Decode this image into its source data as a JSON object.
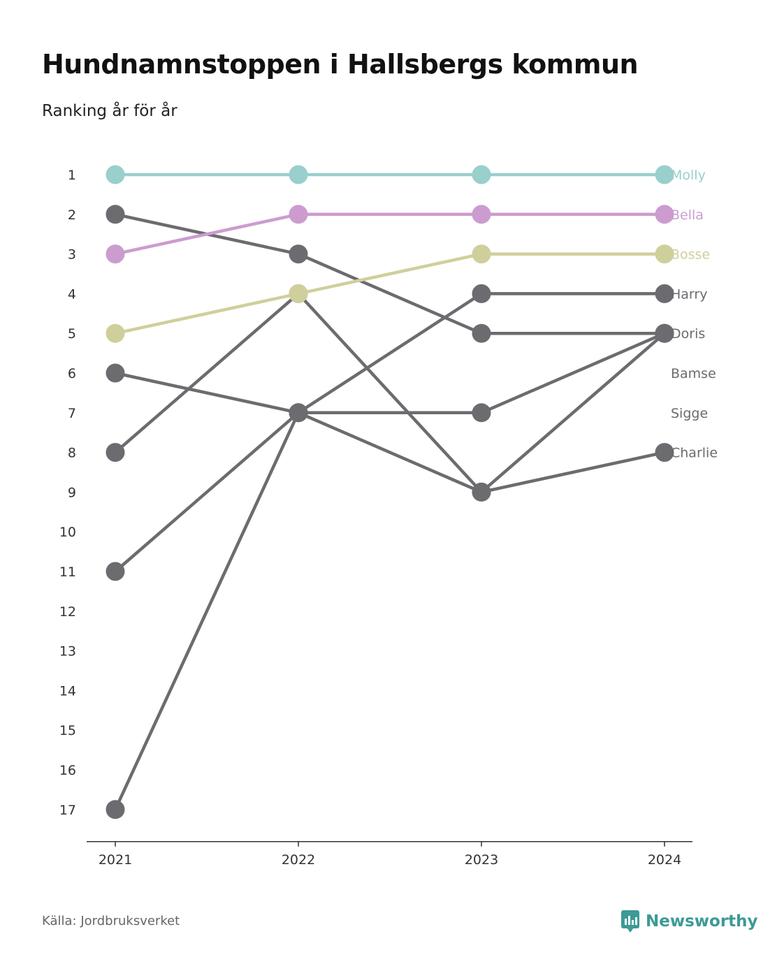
{
  "title": "Hundnamnstoppen i Hallsbergs kommun",
  "subtitle": "Ranking år för år",
  "source": "Källa: Jordbruksverket",
  "brand": {
    "name": "Newsworthy",
    "icon": "newsworthy-logo-icon",
    "color": "#3d9a95"
  },
  "chart_data": {
    "type": "line",
    "subtype": "bump",
    "x": [
      "2021",
      "2022",
      "2023",
      "2024"
    ],
    "y_ticks": [
      1,
      2,
      3,
      4,
      5,
      6,
      7,
      8,
      9,
      10,
      11,
      12,
      13,
      14,
      15,
      16,
      17
    ],
    "ylim": [
      1,
      17
    ],
    "y_inverted": true,
    "grid": false,
    "series": [
      {
        "name": "Molly",
        "values": [
          1,
          1,
          1,
          1
        ],
        "color": "#99cfcc",
        "label_color": "#99cfcc"
      },
      {
        "name": "Bella",
        "values": [
          3,
          2,
          2,
          2
        ],
        "color": "#cc9ccf",
        "label_color": "#cc9ccf"
      },
      {
        "name": "Bosse",
        "values": [
          5,
          4,
          3,
          3
        ],
        "color": "#cfcf9c",
        "label_color": "#cfcf9c"
      },
      {
        "name": "Harry",
        "values": [
          11,
          7,
          4,
          4
        ],
        "color": "#6b6b70",
        "label_color": "#6b6b70"
      },
      {
        "name": "Doris",
        "values": [
          2,
          3,
          5,
          5
        ],
        "color": "#6b6b70",
        "label_color": "#6b6b70"
      },
      {
        "name": "Bamse",
        "values": [
          8,
          4,
          9,
          5
        ],
        "color": "#6b6b70",
        "label_color": "#6b6b70"
      },
      {
        "name": "Sigge",
        "values": [
          17,
          7,
          7,
          5
        ],
        "color": "#6b6b70",
        "label_color": "#6b6b70"
      },
      {
        "name": "Charlie",
        "values": [
          6,
          7,
          9,
          8
        ],
        "color": "#6b6b70",
        "label_color": "#6b6b70"
      }
    ]
  }
}
